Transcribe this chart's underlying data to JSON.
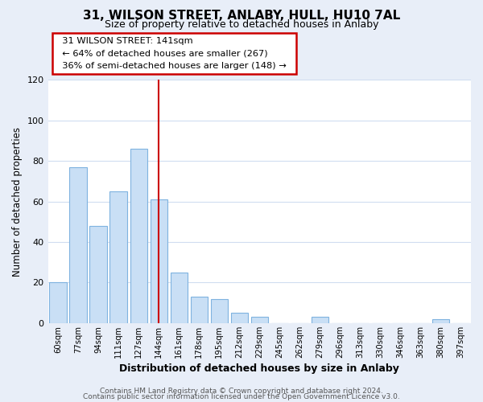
{
  "title": "31, WILSON STREET, ANLABY, HULL, HU10 7AL",
  "subtitle": "Size of property relative to detached houses in Anlaby",
  "xlabel": "Distribution of detached houses by size in Anlaby",
  "ylabel": "Number of detached properties",
  "bar_labels": [
    "60sqm",
    "77sqm",
    "94sqm",
    "111sqm",
    "127sqm",
    "144sqm",
    "161sqm",
    "178sqm",
    "195sqm",
    "212sqm",
    "229sqm",
    "245sqm",
    "262sqm",
    "279sqm",
    "296sqm",
    "313sqm",
    "330sqm",
    "346sqm",
    "363sqm",
    "380sqm",
    "397sqm"
  ],
  "bar_heights": [
    20,
    77,
    48,
    65,
    86,
    61,
    25,
    13,
    12,
    5,
    3,
    0,
    0,
    3,
    0,
    0,
    0,
    0,
    0,
    2,
    0
  ],
  "bar_color": "#c9dff5",
  "bar_edge_color": "#7fb3e0",
  "highlight_color": "#cc0000",
  "ylim": [
    0,
    120
  ],
  "yticks": [
    0,
    20,
    40,
    60,
    80,
    100,
    120
  ],
  "annotation_title": "31 WILSON STREET: 141sqm",
  "annotation_line1": "← 64% of detached houses are smaller (267)",
  "annotation_line2": "36% of semi-detached houses are larger (148) →",
  "annotation_box_color": "#ffffff",
  "annotation_box_edge": "#cc0000",
  "footer1": "Contains HM Land Registry data © Crown copyright and database right 2024.",
  "footer2": "Contains public sector information licensed under the Open Government Licence v3.0.",
  "bg_color": "#e8eef8",
  "plot_bg_color": "#ffffff",
  "grid_color": "#d0ddf0"
}
